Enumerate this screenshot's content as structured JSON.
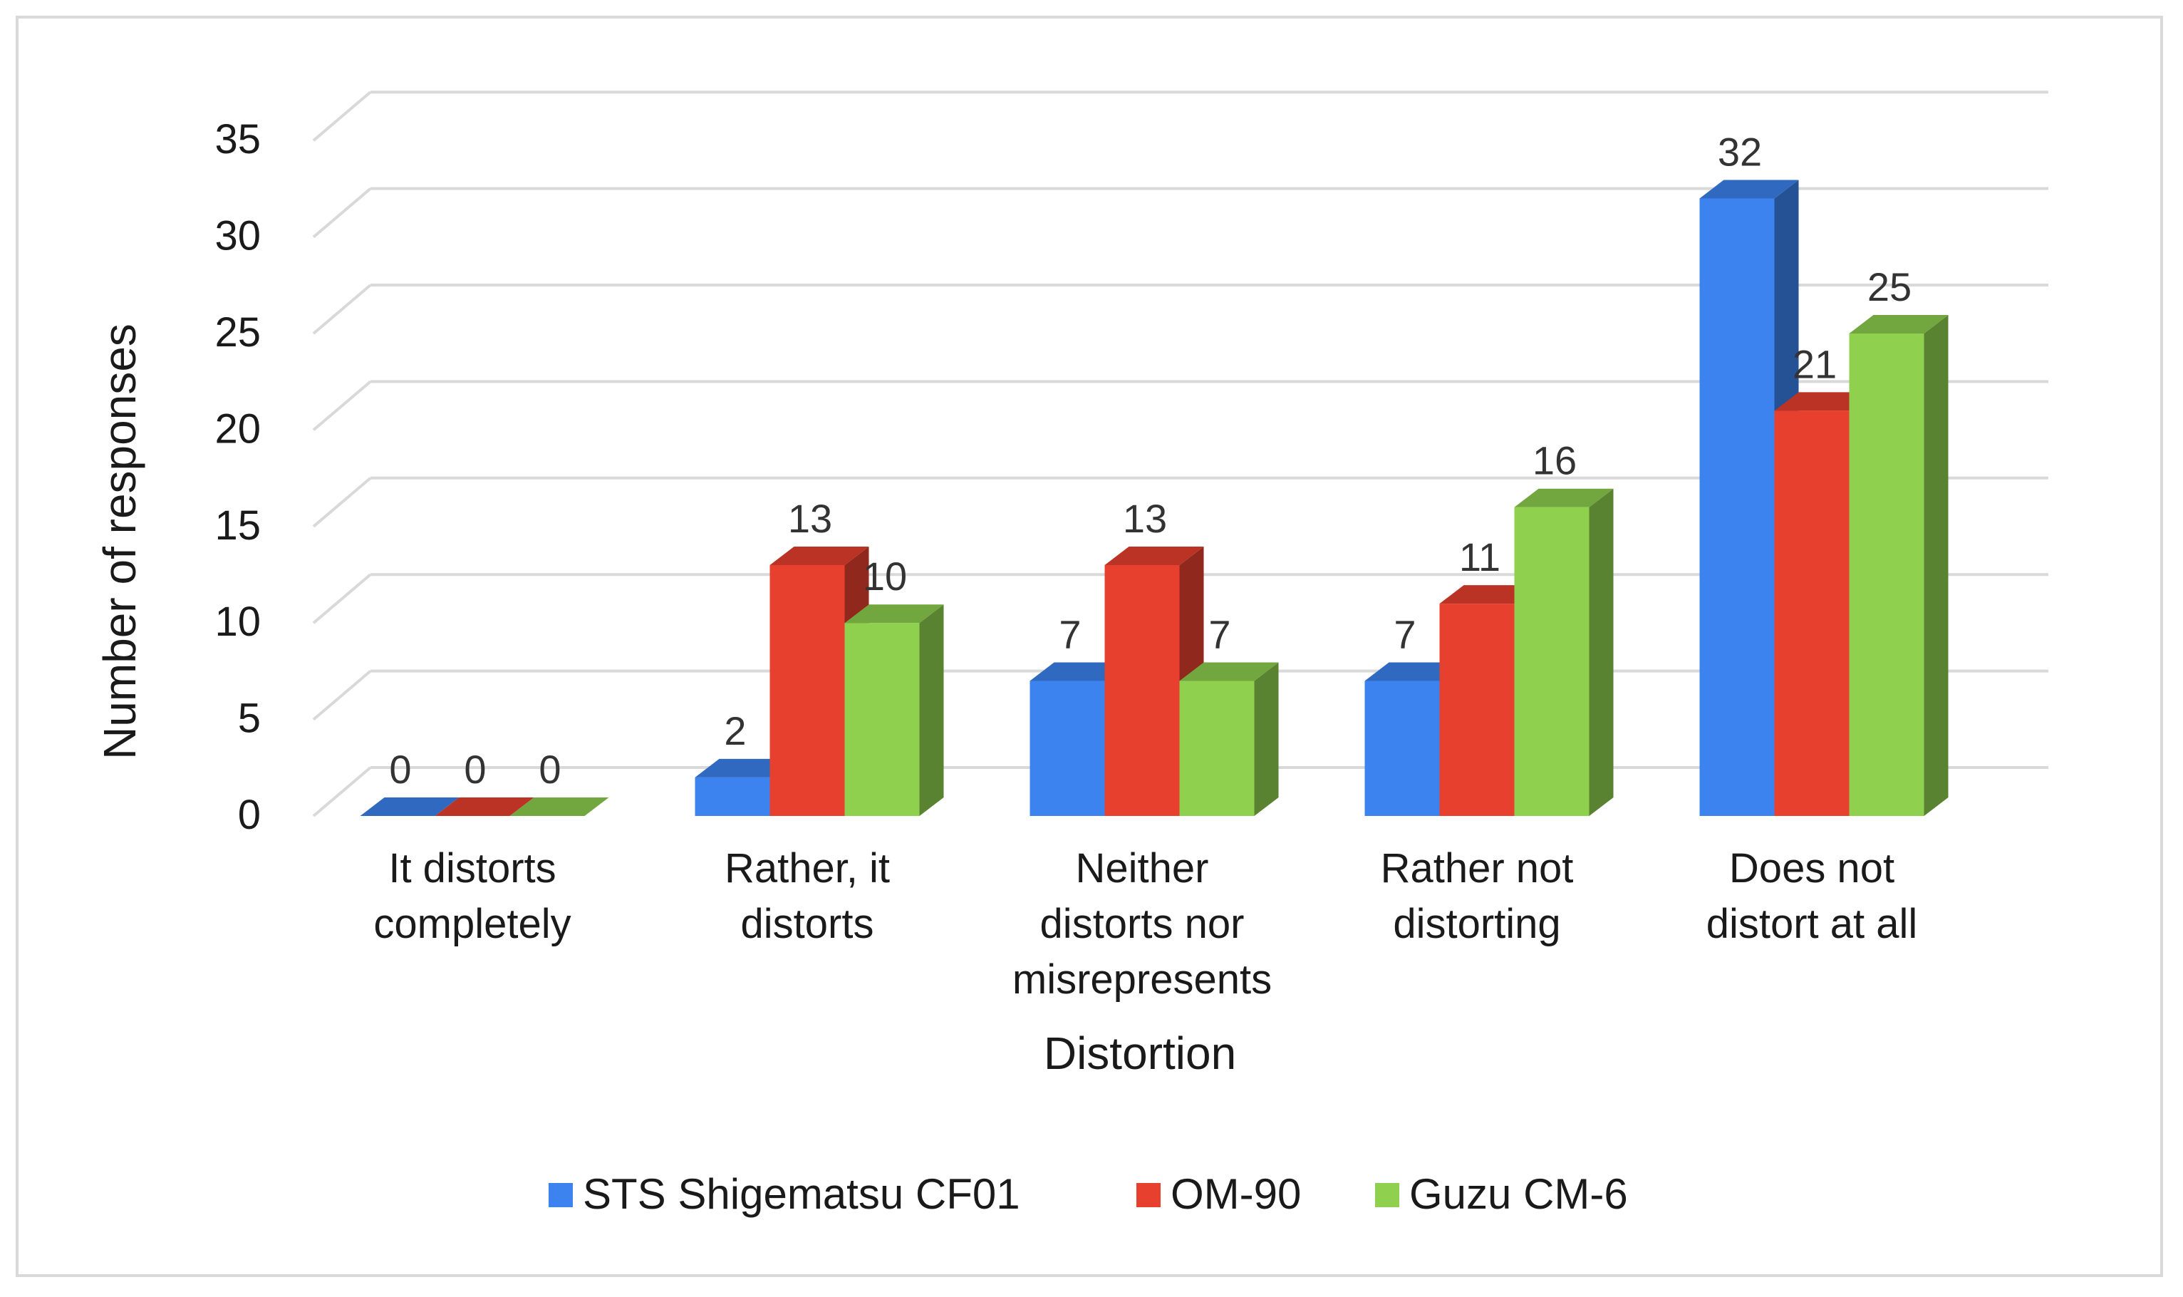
{
  "chart_data": {
    "type": "bar",
    "style": "3d-clustered-column",
    "title": "",
    "xlabel": "Distortion",
    "ylabel": "Number of responses",
    "ylim": [
      0,
      35
    ],
    "yticks": [
      0,
      5,
      10,
      15,
      20,
      25,
      30,
      35
    ],
    "grid": true,
    "legend_position": "bottom",
    "categories": [
      [
        "It distorts",
        "completely"
      ],
      [
        "Rather, it",
        "distorts"
      ],
      [
        "Neither",
        "distorts nor",
        "misrepresents"
      ],
      [
        "Rather not",
        "distorting"
      ],
      [
        "Does not",
        "distort at all"
      ]
    ],
    "series": [
      {
        "name": "STS Shigematsu CF01",
        "color": "#3c83f0",
        "values": [
          0,
          2,
          7,
          7,
          32
        ]
      },
      {
        "name": "OM-90",
        "color": "#e8402e",
        "values": [
          0,
          13,
          13,
          11,
          21
        ]
      },
      {
        "name": "Guzu CM-6",
        "color": "#8fd14f",
        "values": [
          0,
          10,
          7,
          16,
          25
        ]
      }
    ]
  }
}
